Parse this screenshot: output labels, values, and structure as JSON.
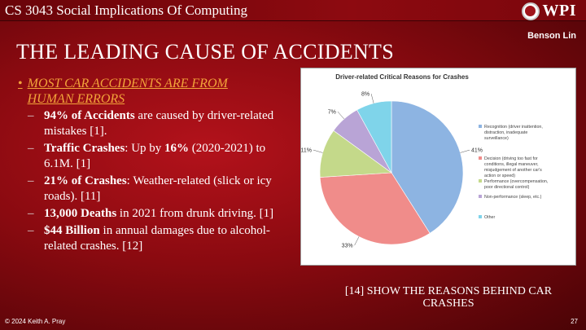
{
  "header": {
    "course_title": "CS 3043 Social Implications Of Computing",
    "logo_text": "WPI",
    "author": "Benson Lin"
  },
  "slide": {
    "title": "THE LEADING CAUSE OF ACCIDENTS",
    "bullet_heading_line1": "MOST CAR ACCIDENTS ARE FROM",
    "bullet_heading_line2": "HUMAN ERRORS",
    "items": [
      {
        "bold": "94% of Accidents",
        "rest": " are caused by driver-related mistakes [1]."
      },
      {
        "bold": "Traffic Crashes",
        "rest": ": Up by ",
        "bold2": "16%",
        "rest2": " (2020-2021) to 6.1M. [1]"
      },
      {
        "bold": "21% of Crashes",
        "rest": ": Weather-related (slick or icy roads). [11]"
      },
      {
        "bold": "13,000 Deaths",
        "rest": " in 2021 from drunk driving. [1]"
      },
      {
        "bold": "$44 Billion",
        "rest": " in annual damages due to alcohol-related crashes. [12]"
      }
    ],
    "caption": "[14] SHOW THE REASONS BEHIND CAR CRASHES"
  },
  "footer": {
    "copyright": "© 2024 Keith A. Pray",
    "page_number": "27"
  },
  "chart_data": {
    "type": "pie",
    "title": "Driver-related Critical Reasons for Crashes",
    "slices": [
      {
        "label": "Recognition (driver inattention, distraction, inadequate surveillance)",
        "value": 41,
        "color": "#8db4e2"
      },
      {
        "label": "Decision (driving too fast for conditions, illegal maneuver, misjudgement of another car's action or speed)",
        "value": 33,
        "color": "#f08c8a"
      },
      {
        "label": "Performance (overcompensation, poor directional control)",
        "value": 11,
        "color": "#c4d98a"
      },
      {
        "label": "Non-performance (sleep, etc.)",
        "value": 7,
        "color": "#b9a4d6"
      },
      {
        "label": "Other",
        "value": 8,
        "color": "#7fd4ea"
      }
    ],
    "data_labels": [
      "41%",
      "33%",
      "11%",
      "7%",
      "8%"
    ],
    "legend_placement": "right"
  }
}
